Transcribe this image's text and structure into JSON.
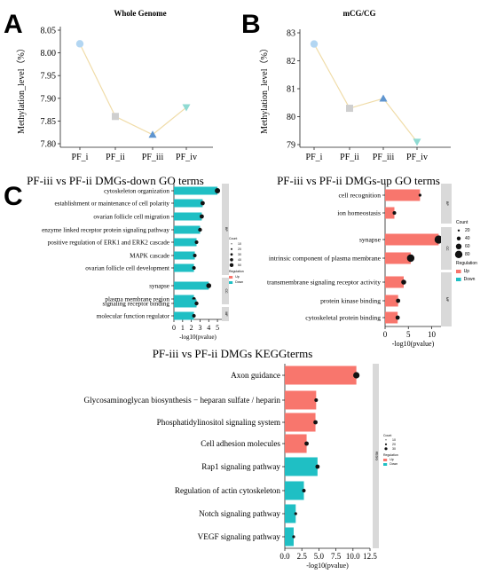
{
  "panel_letters": {
    "a": "A",
    "b": "B",
    "c": "C"
  },
  "chart_data": [
    {
      "type": "line",
      "title": "Whole Genome",
      "ylabel": "Methylation_level（%）",
      "categories": [
        "PF_i",
        "PF_ii",
        "PF_iii",
        "PF_iv"
      ],
      "values": [
        8.02,
        7.86,
        7.82,
        7.88
      ],
      "ylim": [
        7.8,
        8.05
      ],
      "yticks": [
        "7.80",
        "7.85",
        "7.90",
        "7.95",
        "8.00",
        "8.05"
      ],
      "marker_colors": [
        "#b3d6f2",
        "#cfcfcf",
        "#5f95cf",
        "#8fdad2"
      ],
      "line_color": "#f0dca8"
    },
    {
      "type": "line",
      "title": "mCG/CG",
      "ylabel": "Methylation_level（%）",
      "categories": [
        "PF_i",
        "PF_ii",
        "PF_iii",
        "PF_iv"
      ],
      "values": [
        82.6,
        80.3,
        80.65,
        79.1
      ],
      "ylim": [
        79,
        83
      ],
      "yticks": [
        "79",
        "80",
        "81",
        "82",
        "83"
      ],
      "marker_colors": [
        "#b3d6f2",
        "#cfcfcf",
        "#5f95cf",
        "#8fdad2"
      ],
      "line_color": "#f0dca8"
    },
    {
      "type": "bar",
      "title": "PF-iii vs PF-ii DMGs-down  GO terms",
      "xlabel": "-log10(pvalue)",
      "xlim": [
        0,
        5.5
      ],
      "xticks": [
        "0",
        "1",
        "2",
        "3",
        "4",
        "5"
      ],
      "categories": [
        "cytoskeleton organization",
        "establishment or maintenance of cell polarity",
        "ovarian follicle cell migration",
        "enzyme linked receptor protein signaling pathway",
        "positive regulation of ERK1 and ERK2 cascade",
        "MAPK cascade",
        "ovarian follicle cell development",
        "synapse",
        "plasma membrane region",
        "signaling receptor binding",
        "molecular function regulator"
      ],
      "values": [
        5.0,
        3.3,
        3.2,
        3.0,
        2.6,
        2.4,
        2.3,
        4.0,
        2.3,
        2.6,
        2.3
      ],
      "group_labels": [
        "BP",
        "CC",
        "MF"
      ],
      "legend": {
        "count_title": "Count",
        "count_values": [
          "10",
          "20",
          "30",
          "40",
          "50"
        ],
        "reg_title": "Regulation",
        "reg_items": [
          "Up",
          "Down"
        ]
      },
      "colors": {
        "Up": "#f8766d",
        "Down": "#1fbfc4"
      }
    },
    {
      "type": "bar",
      "title": "PF-iii vs PF-ii   DMGs-up GO terms",
      "xlabel": "-log10(pvalue)",
      "xlim": [
        0,
        12
      ],
      "xticks": [
        "0",
        "5",
        "10"
      ],
      "categories": [
        "cell recognition",
        "ion homeostasis",
        "synapse",
        "intrinsic component of plasma membrane",
        "transmembrane signaling receptor activity",
        "protein kinase binding",
        "cytoskeletal protein binding"
      ],
      "values": [
        7.5,
        2.0,
        11.5,
        5.5,
        4.0,
        2.8,
        2.7
      ],
      "group_labels": [
        "BP",
        "CC",
        "MF"
      ],
      "legend": {
        "count_title": "Count",
        "count_values": [
          "20",
          "40",
          "60",
          "80"
        ],
        "reg_title": "Regulation",
        "reg_items": [
          "Up",
          "Down"
        ]
      },
      "colors": {
        "Up": "#f8766d",
        "Down": "#1fbfc4"
      }
    },
    {
      "type": "bar",
      "title": "PF-iii vs PF-ii  DMGs KEGGterms",
      "xlabel": "-log10(pvalue)",
      "xlim": [
        0,
        12.5
      ],
      "xticks": [
        "0.0",
        "2.5",
        "5.0",
        "7.5",
        "10.0",
        "12.5"
      ],
      "categories": [
        "Axon guidance",
        "Glycosaminoglycan biosynthesis − heparan sulfate / heparin",
        "Phosphatidylinositol signaling system",
        "Cell adhesion molecules",
        "Rap1 signaling pathway",
        "Regulation of actin cytoskeleton",
        "Notch signaling pathway",
        "VEGF signaling pathway"
      ],
      "values": [
        10.5,
        4.6,
        4.5,
        3.2,
        4.8,
        2.8,
        1.6,
        1.3
      ],
      "regulation": [
        "Up",
        "Up",
        "Up",
        "Up",
        "Down",
        "Down",
        "Down",
        "Down"
      ],
      "group_labels": [
        "KEGG"
      ],
      "legend": {
        "count_title": "Count",
        "count_values": [
          "10",
          "20",
          "30"
        ],
        "reg_title": "Regulation",
        "reg_items": [
          "Up",
          "Down"
        ]
      },
      "colors": {
        "Up": "#f8766d",
        "Down": "#1fbfc4"
      }
    }
  ]
}
